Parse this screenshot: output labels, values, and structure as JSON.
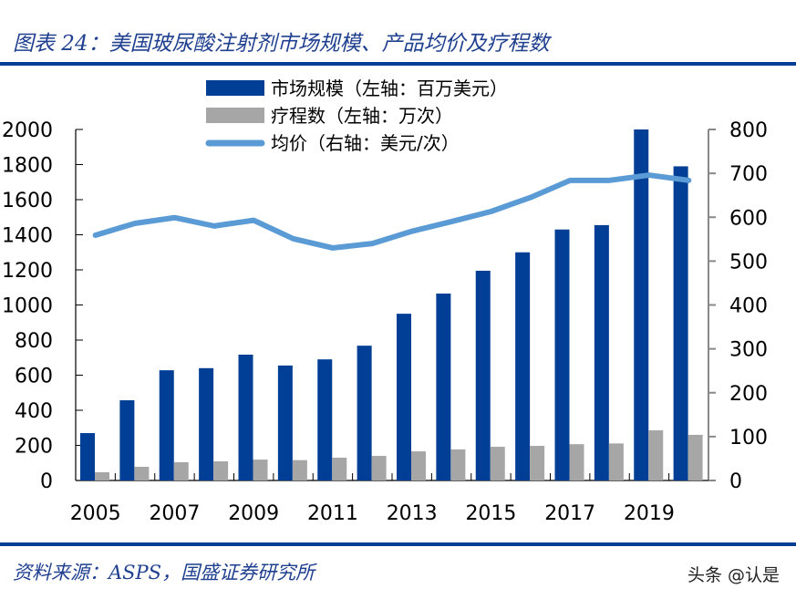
{
  "header": {
    "title": "图表 24：美国玻尿酸注射剂市场规模、产品均价及疗程数"
  },
  "footer": {
    "source": "资料来源：ASPS，国盛证券研究所",
    "watermark": "头条 @认是"
  },
  "colors": {
    "accent": "#003f95",
    "market": "#003f95",
    "courses": "#a6a6a6",
    "price": "#5b9bd5"
  },
  "chart_data": {
    "type": "bar",
    "categories": [
      "2005",
      "2006",
      "2007",
      "2008",
      "2009",
      "2010",
      "2011",
      "2012",
      "2013",
      "2014",
      "2015",
      "2016",
      "2017",
      "2018",
      "2019",
      "2020"
    ],
    "x_tick_labels": [
      "2005",
      "2007",
      "2009",
      "2011",
      "2013",
      "2015",
      "2017",
      "2019"
    ],
    "left_axis": {
      "ylim": [
        0,
        2000
      ],
      "ticks": [
        "0",
        "200",
        "400",
        "600",
        "800",
        "1000",
        "1200",
        "1400",
        "1600",
        "1800",
        "2000"
      ]
    },
    "right_axis": {
      "ylim": [
        0,
        800
      ],
      "ticks": [
        "0",
        "100",
        "200",
        "300",
        "400",
        "500",
        "600",
        "700",
        "800"
      ]
    },
    "legend_position": "top",
    "grid": false,
    "series": [
      {
        "name": "市场规模（左轴：百万美元）",
        "type": "bar",
        "axis": "left",
        "values": [
          270,
          457,
          628,
          640,
          717,
          655,
          690,
          768,
          950,
          1065,
          1195,
          1300,
          1430,
          1455,
          2000,
          1790
        ]
      },
      {
        "name": "疗程数（左轴：万次）",
        "type": "bar",
        "axis": "left",
        "values": [
          47,
          78,
          104,
          109,
          119,
          116,
          130,
          140,
          166,
          177,
          192,
          197,
          207,
          211,
          286,
          260
        ]
      },
      {
        "name": "均价（右轴：美元/次）",
        "type": "line",
        "axis": "right",
        "values": [
          559,
          586,
          599,
          580,
          593,
          551,
          530,
          540,
          568,
          590,
          613,
          645,
          684,
          684,
          696,
          684
        ]
      }
    ]
  }
}
